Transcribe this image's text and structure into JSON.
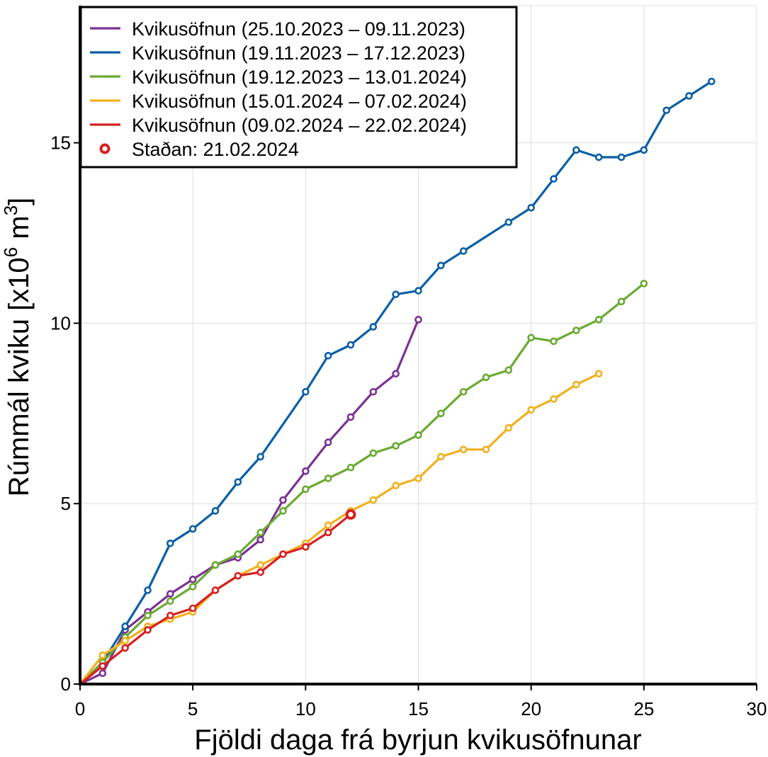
{
  "chart_data": {
    "type": "line",
    "xlabel": "Fjöldi daga frá byrjun kvikusöfnunar",
    "ylabel": {
      "prefix": "Rúmmál kviku [x10",
      "exp1": "6",
      "mid": " m",
      "exp2": "3",
      "suffix": "]"
    },
    "xlim": [
      0,
      30
    ],
    "ylim": [
      0,
      18.8
    ],
    "xticks": [
      0,
      5,
      10,
      15,
      20,
      25,
      30
    ],
    "yticks": [
      0,
      5,
      10,
      15
    ],
    "grid": true,
    "legend_position": "top-left",
    "series": [
      {
        "name": "Kvikusöfnun (25.10.2023 – 09.11.2023)",
        "color": "#7b3294",
        "x": [
          0,
          1,
          2,
          3,
          4,
          5,
          6,
          7,
          8,
          9,
          10,
          11,
          12,
          13,
          14,
          15
        ],
        "y": [
          0,
          0.3,
          1.5,
          2.0,
          2.5,
          2.9,
          3.3,
          3.5,
          4.0,
          5.1,
          5.9,
          6.7,
          7.4,
          8.1,
          8.6,
          10.1
        ]
      },
      {
        "name": "Kvikusöfnun (19.11.2023 – 17.12.2023)",
        "color": "#0b5fa5",
        "x": [
          0,
          1,
          2,
          3,
          4,
          5,
          6,
          7,
          8,
          10,
          11,
          12,
          13,
          14,
          15,
          16,
          17,
          19,
          20,
          21,
          22,
          23,
          24,
          25,
          26,
          27,
          28
        ],
        "y": [
          0,
          0.6,
          1.6,
          2.6,
          3.9,
          4.3,
          4.8,
          5.6,
          6.3,
          8.1,
          9.1,
          9.4,
          9.9,
          10.8,
          10.9,
          11.6,
          12.0,
          12.8,
          13.2,
          14.0,
          14.8,
          14.6,
          14.6,
          14.8,
          15.9,
          16.3,
          16.7
        ]
      },
      {
        "name": "Kvikusöfnun (19.12.2023 – 13.01.2024)",
        "color": "#6aaa32",
        "x": [
          0,
          1,
          2,
          3,
          4,
          5,
          6,
          7,
          8,
          9,
          10,
          11,
          12,
          13,
          14,
          15,
          16,
          17,
          18,
          19,
          20,
          21,
          22,
          23,
          24,
          25
        ],
        "y": [
          0,
          0.6,
          1.3,
          1.9,
          2.3,
          2.7,
          3.3,
          3.6,
          4.2,
          4.8,
          5.4,
          5.7,
          6.0,
          6.4,
          6.6,
          6.9,
          7.5,
          8.1,
          8.5,
          8.7,
          9.6,
          9.5,
          9.8,
          10.1,
          10.6,
          11.1
        ]
      },
      {
        "name": "Kvikusöfnun (15.01.2024 – 07.02.2024)",
        "color": "#f2b01e",
        "x": [
          0,
          1,
          2,
          3,
          4,
          5,
          6,
          7,
          8,
          9,
          10,
          11,
          12,
          13,
          14,
          15,
          16,
          17,
          18,
          19,
          20,
          21,
          22,
          23
        ],
        "y": [
          0,
          0.8,
          1.2,
          1.6,
          1.8,
          2.0,
          2.6,
          3.0,
          3.3,
          3.6,
          3.9,
          4.4,
          4.8,
          5.1,
          5.5,
          5.7,
          6.3,
          6.5,
          6.5,
          7.1,
          7.6,
          7.9,
          8.3,
          8.6
        ]
      },
      {
        "name": "Kvikusöfnun (09.02.2024 – 22.02.2024)",
        "color": "#d62020",
        "x": [
          0,
          1,
          2,
          3,
          4,
          5,
          6,
          7,
          8,
          9,
          10,
          11,
          12
        ],
        "y": [
          0,
          0.5,
          1.0,
          1.5,
          1.9,
          2.1,
          2.6,
          3.0,
          3.1,
          3.6,
          3.8,
          4.2,
          4.7
        ]
      }
    ],
    "current_point": {
      "name": "Staðan: 21.02.2024",
      "color": "#d62020",
      "x": 12,
      "y": 4.7
    }
  }
}
